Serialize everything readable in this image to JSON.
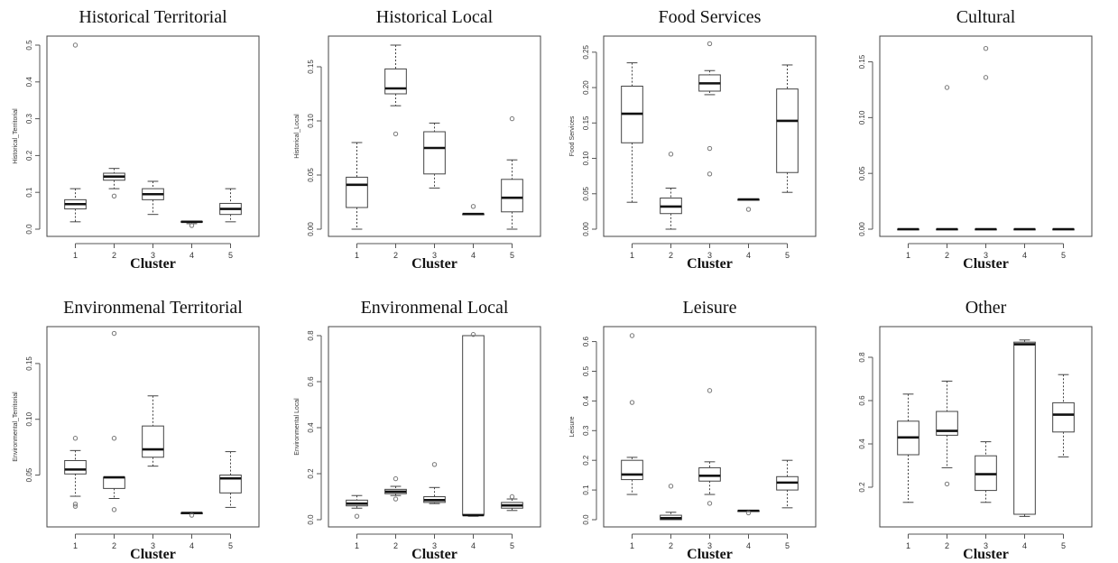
{
  "chart_data": [
    {
      "type": "boxplot",
      "title": "Historical Territorial",
      "xlabel": "Cluster",
      "ylabel": "Historical_Territorial",
      "ylim": [
        0,
        0.5
      ],
      "yticks": [
        "0.0",
        "0.1",
        "0.2",
        "0.3",
        "0.4",
        "0.5"
      ],
      "categories": [
        "1",
        "2",
        "3",
        "4",
        "5"
      ],
      "boxes": [
        {
          "min": 0.02,
          "q1": 0.055,
          "median": 0.068,
          "q3": 0.08,
          "max": 0.11,
          "outliers": [
            0.5
          ]
        },
        {
          "min": 0.11,
          "q1": 0.133,
          "median": 0.143,
          "q3": 0.152,
          "max": 0.165,
          "outliers": [
            0.09
          ]
        },
        {
          "min": 0.04,
          "q1": 0.08,
          "median": 0.095,
          "q3": 0.11,
          "max": 0.13,
          "outliers": []
        },
        {
          "min": 0.015,
          "q1": 0.019,
          "median": 0.02,
          "q3": 0.021,
          "max": 0.022,
          "outliers": [
            0.01
          ]
        },
        {
          "min": 0.02,
          "q1": 0.04,
          "median": 0.055,
          "q3": 0.07,
          "max": 0.11,
          "outliers": []
        }
      ]
    },
    {
      "type": "boxplot",
      "title": "Historical  Local",
      "xlabel": "Cluster",
      "ylabel": "Historical_Local",
      "ylim": [
        0,
        0.17
      ],
      "yticks": [
        "0.00",
        "0.05",
        "0.10",
        "0.15"
      ],
      "categories": [
        "1",
        "2",
        "3",
        "4",
        "5"
      ],
      "boxes": [
        {
          "min": 0.0,
          "q1": 0.02,
          "median": 0.041,
          "q3": 0.048,
          "max": 0.08,
          "outliers": []
        },
        {
          "min": 0.114,
          "q1": 0.125,
          "median": 0.13,
          "q3": 0.148,
          "max": 0.17,
          "outliers": [
            0.088
          ]
        },
        {
          "min": 0.038,
          "q1": 0.051,
          "median": 0.075,
          "q3": 0.09,
          "max": 0.098,
          "outliers": []
        },
        {
          "min": 0.014,
          "q1": 0.014,
          "median": 0.014,
          "q3": 0.014,
          "max": 0.014,
          "outliers": [
            0.021
          ]
        },
        {
          "min": 0.0,
          "q1": 0.016,
          "median": 0.029,
          "q3": 0.046,
          "max": 0.064,
          "outliers": [
            0.102
          ]
        }
      ]
    },
    {
      "type": "boxplot",
      "title": "Food Services",
      "xlabel": "Cluster",
      "ylabel": "Food Services",
      "ylim": [
        0,
        0.26
      ],
      "yticks": [
        "0.00",
        "0.05",
        "0.10",
        "0.15",
        "0.20",
        "0.25"
      ],
      "categories": [
        "1",
        "2",
        "3",
        "4",
        "5"
      ],
      "boxes": [
        {
          "min": 0.038,
          "q1": 0.122,
          "median": 0.163,
          "q3": 0.202,
          "max": 0.235,
          "outliers": []
        },
        {
          "min": 0.0,
          "q1": 0.022,
          "median": 0.032,
          "q3": 0.044,
          "max": 0.058,
          "outliers": [
            0.106
          ]
        },
        {
          "min": 0.19,
          "q1": 0.195,
          "median": 0.206,
          "q3": 0.218,
          "max": 0.224,
          "outliers": [
            0.262,
            0.114,
            0.078
          ]
        },
        {
          "min": 0.042,
          "q1": 0.042,
          "median": 0.042,
          "q3": 0.042,
          "max": 0.042,
          "outliers": [
            0.028
          ]
        },
        {
          "min": 0.052,
          "q1": 0.08,
          "median": 0.153,
          "q3": 0.198,
          "max": 0.232,
          "outliers": []
        }
      ]
    },
    {
      "type": "boxplot",
      "title": "Cultural",
      "xlabel": "Cluster",
      "ylabel": "",
      "ylim": [
        0,
        0.165
      ],
      "yticks": [
        "0.00",
        "0.05",
        "0.10",
        "0.15"
      ],
      "categories": [
        "1",
        "2",
        "3",
        "4",
        "5"
      ],
      "boxes": [
        {
          "min": 0.0,
          "q1": 0.0,
          "median": 0.0,
          "q3": 0.0,
          "max": 0.0,
          "outliers": []
        },
        {
          "min": 0.0,
          "q1": 0.0,
          "median": 0.0,
          "q3": 0.0,
          "max": 0.0,
          "outliers": [
            0.127
          ]
        },
        {
          "min": 0.0,
          "q1": 0.0,
          "median": 0.0,
          "q3": 0.0,
          "max": 0.0,
          "outliers": [
            0.162,
            0.136
          ]
        },
        {
          "min": 0.0,
          "q1": 0.0,
          "median": 0.0,
          "q3": 0.0,
          "max": 0.0,
          "outliers": []
        },
        {
          "min": 0.0,
          "q1": 0.0,
          "median": 0.0,
          "q3": 0.0,
          "max": 0.0,
          "outliers": []
        }
      ]
    },
    {
      "type": "boxplot",
      "title": "Environmenal Territorial",
      "xlabel": "Cluster",
      "ylabel": "Environmental_Territorial",
      "ylim": [
        0.01,
        0.175
      ],
      "yticks": [
        "0.05",
        "0.10",
        "0.15"
      ],
      "categories": [
        "1",
        "2",
        "3",
        "4",
        "5"
      ],
      "boxes": [
        {
          "min": 0.031,
          "q1": 0.051,
          "median": 0.055,
          "q3": 0.063,
          "max": 0.072,
          "outliers": [
            0.083,
            0.024,
            0.022
          ]
        },
        {
          "min": 0.029,
          "q1": 0.038,
          "median": 0.048,
          "q3": 0.048,
          "max": 0.048,
          "outliers": [
            0.177,
            0.083,
            0.019
          ]
        },
        {
          "min": 0.058,
          "q1": 0.066,
          "median": 0.073,
          "q3": 0.094,
          "max": 0.121,
          "outliers": []
        },
        {
          "min": 0.016,
          "q1": 0.016,
          "median": 0.016,
          "q3": 0.016,
          "max": 0.016,
          "outliers": [
            0.014
          ]
        },
        {
          "min": 0.021,
          "q1": 0.034,
          "median": 0.047,
          "q3": 0.05,
          "max": 0.071,
          "outliers": []
        }
      ]
    },
    {
      "type": "boxplot",
      "title": "Environmenal Local",
      "xlabel": "Cluster",
      "ylabel": "Environmental Local",
      "ylim": [
        0,
        0.8
      ],
      "yticks": [
        "0.0",
        "0.2",
        "0.4",
        "0.6",
        "0.8"
      ],
      "categories": [
        "1",
        "2",
        "3",
        "4",
        "5"
      ],
      "boxes": [
        {
          "min": 0.05,
          "q1": 0.06,
          "median": 0.07,
          "q3": 0.085,
          "max": 0.105,
          "outliers": [
            0.015
          ]
        },
        {
          "min": 0.105,
          "q1": 0.113,
          "median": 0.122,
          "q3": 0.132,
          "max": 0.145,
          "outliers": [
            0.178,
            0.09
          ]
        },
        {
          "min": 0.07,
          "q1": 0.075,
          "median": 0.085,
          "q3": 0.1,
          "max": 0.14,
          "outliers": [
            0.24
          ]
        },
        {
          "min": 0.015,
          "q1": 0.02,
          "median": 0.02,
          "q3": 0.8,
          "max": 0.8,
          "outliers": [
            0.805
          ]
        },
        {
          "min": 0.04,
          "q1": 0.05,
          "median": 0.062,
          "q3": 0.075,
          "max": 0.09,
          "outliers": [
            0.1
          ]
        }
      ]
    },
    {
      "type": "boxplot",
      "title": "Leisure",
      "xlabel": "Cluster",
      "ylabel": "Leisure",
      "ylim": [
        0,
        0.62
      ],
      "yticks": [
        "0.0",
        "0.1",
        "0.2",
        "0.3",
        "0.4",
        "0.5",
        "0.6"
      ],
      "categories": [
        "1",
        "2",
        "3",
        "4",
        "5"
      ],
      "boxes": [
        {
          "min": 0.085,
          "q1": 0.135,
          "median": 0.152,
          "q3": 0.2,
          "max": 0.21,
          "outliers": [
            0.62,
            0.395
          ]
        },
        {
          "min": 0.0,
          "q1": 0.0,
          "median": 0.005,
          "q3": 0.015,
          "max": 0.025,
          "outliers": [
            0.113
          ]
        },
        {
          "min": 0.085,
          "q1": 0.13,
          "median": 0.148,
          "q3": 0.175,
          "max": 0.195,
          "outliers": [
            0.435,
            0.055
          ]
        },
        {
          "min": 0.03,
          "q1": 0.03,
          "median": 0.03,
          "q3": 0.03,
          "max": 0.03,
          "outliers": [
            0.023
          ]
        },
        {
          "min": 0.04,
          "q1": 0.1,
          "median": 0.125,
          "q3": 0.145,
          "max": 0.2,
          "outliers": []
        }
      ]
    },
    {
      "type": "boxplot",
      "title": "Other",
      "xlabel": "Cluster",
      "ylabel": "",
      "ylim": [
        0.05,
        0.9
      ],
      "yticks": [
        "0.2",
        "0.4",
        "0.6",
        "0.8"
      ],
      "categories": [
        "1",
        "2",
        "3",
        "4",
        "5"
      ],
      "boxes": [
        {
          "min": 0.13,
          "q1": 0.35,
          "median": 0.43,
          "q3": 0.505,
          "max": 0.63,
          "outliers": []
        },
        {
          "min": 0.29,
          "q1": 0.44,
          "median": 0.46,
          "q3": 0.55,
          "max": 0.69,
          "outliers": [
            0.215
          ]
        },
        {
          "min": 0.13,
          "q1": 0.185,
          "median": 0.26,
          "q3": 0.345,
          "max": 0.41,
          "outliers": []
        },
        {
          "min": 0.065,
          "q1": 0.075,
          "median": 0.86,
          "q3": 0.87,
          "max": 0.88,
          "outliers": []
        },
        {
          "min": 0.34,
          "q1": 0.455,
          "median": 0.535,
          "q3": 0.59,
          "max": 0.72,
          "outliers": []
        }
      ]
    }
  ]
}
